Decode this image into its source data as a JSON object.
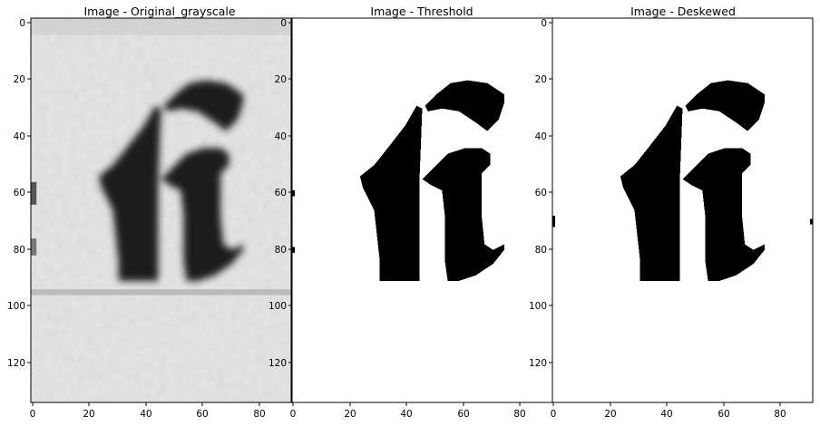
{
  "figure": {
    "panels": [
      {
        "title": "Image - Original_grayscale",
        "style": "grayscale-noisy",
        "xticks": [
          "0",
          "20",
          "40",
          "60",
          "80"
        ],
        "yticks": [
          "0",
          "20",
          "40",
          "60",
          "80",
          "100",
          "120"
        ]
      },
      {
        "title": "Image - Threshold",
        "style": "binary",
        "xticks": [
          "0",
          "20",
          "40",
          "60",
          "80"
        ],
        "yticks": [
          "0",
          "20",
          "40",
          "60",
          "80",
          "100",
          "120"
        ]
      },
      {
        "title": "Image - Deskewed",
        "style": "binary",
        "xticks": [
          "0",
          "20",
          "40",
          "60",
          "80"
        ],
        "yticks": [
          "0",
          "20",
          "40",
          "60",
          "80",
          "100",
          "120"
        ]
      }
    ],
    "glyph": "fi-ligature",
    "colors": {
      "background": "#ffffff",
      "ink": "#000000",
      "paper_gray": "#e6e6e6",
      "ink_gray": "#1c1c1c"
    }
  }
}
